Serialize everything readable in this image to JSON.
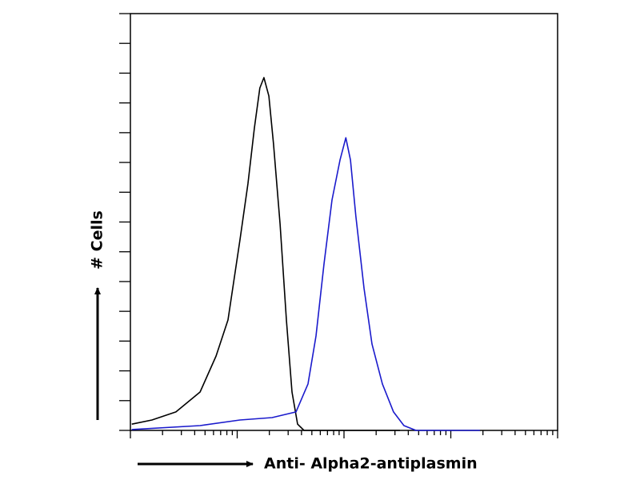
{
  "chart_data": {
    "type": "line",
    "xlabel": "Anti- Alpha2-antiplasmin",
    "ylabel": "# Cells",
    "xscale": "log",
    "xlim": [
      1,
      10000
    ],
    "ylim": [
      0,
      140
    ],
    "xticks": [
      1,
      2,
      3,
      4,
      5,
      6,
      7,
      8,
      9,
      10,
      20,
      30,
      40,
      50,
      60,
      70,
      80,
      90,
      100,
      200,
      300,
      400,
      500,
      600,
      700,
      800,
      900,
      1000,
      2000,
      3000,
      4000,
      5000,
      6000,
      7000,
      8000,
      9000,
      10000
    ],
    "yticks": [
      0,
      10,
      20,
      30,
      40,
      50,
      60,
      70,
      80,
      90,
      100,
      110,
      120,
      130,
      140
    ],
    "tick_labels": false,
    "series": [
      {
        "color": "#000000",
        "x": [
          1.03,
          1.59,
          2.67,
          4.49,
          6.34,
          8.2,
          10.6,
          12.6,
          14.5,
          16.3,
          17.8,
          19.8,
          21.9,
          25.2,
          28.9,
          32.6,
          36.8,
          42.2,
          84.1,
          334
        ],
        "values": [
          2.1,
          3.5,
          6.2,
          12.9,
          25,
          37.1,
          63.9,
          82.8,
          101.6,
          115,
          118.5,
          112.3,
          96.2,
          69.3,
          37.1,
          12.9,
          2.1,
          0,
          0,
          0
        ]
      },
      {
        "color": "#1a1acc",
        "x": [
          1.03,
          4.49,
          10.6,
          21.2,
          35.5,
          46,
          54.7,
          65,
          77.2,
          91.8,
          104,
          115,
          129,
          154,
          183,
          229,
          291,
          364,
          472,
          1875
        ],
        "values": [
          0.3,
          1.6,
          3.5,
          4.3,
          6.2,
          15.6,
          31.7,
          55.9,
          77.4,
          90.8,
          98.3,
          90.8,
          72,
          47.8,
          29,
          15.6,
          6.2,
          1.6,
          0,
          0
        ]
      }
    ]
  }
}
